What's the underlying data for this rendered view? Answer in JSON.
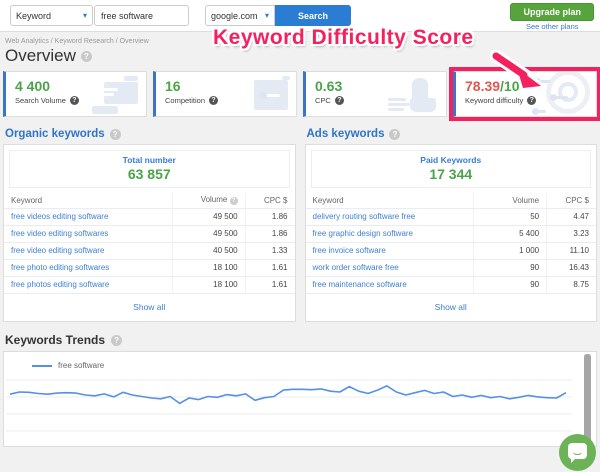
{
  "topbar": {
    "keyword_select": "Keyword",
    "search_value": "free software",
    "region_select": "google.com",
    "search_button": "Search",
    "upgrade_button": "Upgrade plan",
    "other_plans_link": "See other plans"
  },
  "breadcrumb": "Web Analytics / Keyword Research / Overview",
  "page_title": "Overview",
  "annotation": {
    "text": "Keyword Difficulty Score",
    "color": "#f5215f"
  },
  "colors": {
    "accent_blue": "#3a76c4",
    "link_blue": "#3f7fd1",
    "value_green": "#4aa44a",
    "value_red": "#e2574e",
    "highlight_pink": "#f5215f",
    "search_button_blue": "#2b7cd3",
    "upgrade_green": "#57a33c",
    "trend_line": "#5490e8"
  },
  "metrics": [
    {
      "value": "4 400",
      "value_suffix": "",
      "label": "Search Volume",
      "value_color": "#4aa44a",
      "icon": "report-illustration"
    },
    {
      "value": "16",
      "value_suffix": "",
      "label": "Competition",
      "value_color": "#4aa44a",
      "icon": "key-illustration"
    },
    {
      "value": "0.63",
      "value_suffix": "",
      "label": "CPC",
      "value_color": "#4aa44a",
      "icon": "hand-cursor-illustration"
    },
    {
      "value": "78.39",
      "value_suffix": "/100",
      "label": "Keyword difficulty",
      "value_color": "#e2574e",
      "suffix_color": "#4aa44a",
      "icon": "gauge-illustration",
      "highlighted": true
    }
  ],
  "panels": [
    {
      "title": "Organic keywords",
      "summary_label": "Total number",
      "summary_value": "63 857",
      "columns": [
        "Keyword",
        "Volume",
        "CPC $"
      ],
      "volume_help_icon": true,
      "rows": [
        {
          "keyword": "free videos editing software",
          "volume": "49 500",
          "cpc": "1.86"
        },
        {
          "keyword": "free video editing softwares",
          "volume": "49 500",
          "cpc": "1.86"
        },
        {
          "keyword": "free video editing software",
          "volume": "40 500",
          "cpc": "1.33"
        },
        {
          "keyword": "free photo editing softwares",
          "volume": "18 100",
          "cpc": "1.61"
        },
        {
          "keyword": "free photos editing software",
          "volume": "18 100",
          "cpc": "1.61"
        }
      ],
      "show_all": "Show all"
    },
    {
      "title": "Ads keywords",
      "summary_label": "Paid Keywords",
      "summary_value": "17 344",
      "columns": [
        "Keyword",
        "Volume",
        "CPC $"
      ],
      "volume_help_icon": false,
      "rows": [
        {
          "keyword": "delivery routing software free",
          "volume": "50",
          "cpc": "4.47"
        },
        {
          "keyword": "free graphic design software",
          "volume": "5 400",
          "cpc": "3.23"
        },
        {
          "keyword": "free invoice software",
          "volume": "1 000",
          "cpc": "11.10"
        },
        {
          "keyword": "work order software free",
          "volume": "90",
          "cpc": "16.43"
        },
        {
          "keyword": "free maintenance software",
          "volume": "90",
          "cpc": "8.75"
        }
      ],
      "show_all": "Show all"
    }
  ],
  "trends": {
    "title": "Keywords Trends",
    "legend": "free software"
  },
  "chart_data": {
    "type": "line",
    "title": "Keywords Trends",
    "legend_position": "top-left",
    "grid": true,
    "x_axis": {
      "labels_visible": false,
      "note": "time series, no tick labels shown"
    },
    "y_axis": {
      "labels_visible": false,
      "range_estimate": [
        0,
        100
      ]
    },
    "line_color": "#5490e8",
    "series": [
      {
        "name": "free software",
        "values": [
          52,
          58,
          57,
          54,
          52,
          55,
          56,
          55,
          50,
          48,
          53,
          45,
          57,
          50,
          46,
          42,
          40,
          46,
          28,
          42,
          38,
          46,
          44,
          51,
          48,
          53,
          36,
          43,
          46,
          63,
          65,
          65,
          64,
          66,
          60,
          58,
          72,
          60,
          54,
          63,
          74,
          58,
          50,
          56,
          62,
          54,
          58,
          46,
          50,
          44,
          49,
          43,
          46,
          40,
          44,
          49,
          45,
          43,
          42,
          56
        ]
      }
    ]
  }
}
